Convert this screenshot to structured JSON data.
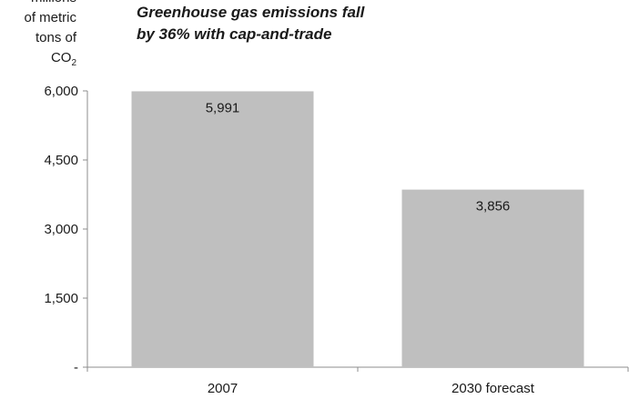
{
  "chart_data": {
    "type": "bar",
    "annotation": {
      "line1": "Greenhouse gas emissions fall",
      "line2": "by 36% with cap-and-trade"
    },
    "ylabel": {
      "line0": "millions",
      "line1": "of metric",
      "line2": "tons of",
      "line3_main": "CO",
      "line3_sub": "2"
    },
    "categories": [
      "2007",
      "2030 forecast"
    ],
    "values": [
      5991,
      3856
    ],
    "value_labels": [
      "5,991",
      "3,856"
    ],
    "yticks": [
      0,
      1500,
      3000,
      4500,
      6000
    ],
    "ytick_labels": [
      "-",
      "1,500",
      "3,000",
      "4,500",
      "6,000"
    ],
    "ylim": [
      0,
      6000
    ],
    "grid": false,
    "legend": "none",
    "colors": {
      "bar": "#bfbfbf",
      "axis": "#8c8c8c",
      "text": "#1a1a1a"
    }
  }
}
